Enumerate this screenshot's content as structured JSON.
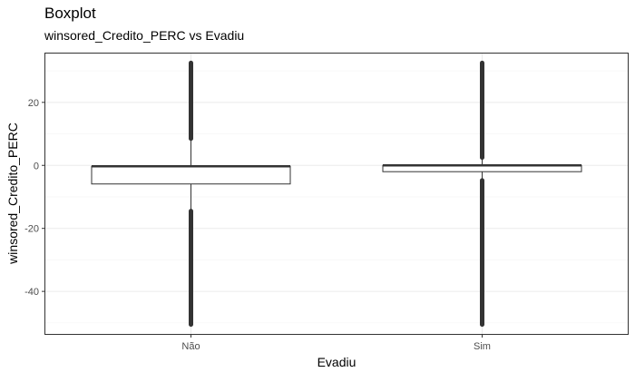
{
  "chart_data": {
    "type": "boxplot",
    "title": "Boxplot",
    "subtitle": "winsored_Credito_PERC vs Evadiu",
    "xlabel": "Evadiu",
    "ylabel": "winsored_Credito_PERC",
    "categories": [
      "Não",
      "Sim"
    ],
    "ylim": [
      -53.5,
      35.5
    ],
    "yticks": [
      20,
      0,
      -20,
      -40
    ],
    "grid": true,
    "boxes": [
      {
        "category": "Não",
        "whisker_low": -14.5,
        "q1": -5.9,
        "median": -0.3,
        "q3": -0.3,
        "whisker_high": 8.5,
        "outliers_high": [
          8.5,
          32.5
        ],
        "outliers_low": [
          -50.5,
          -14.5
        ]
      },
      {
        "category": "Sim",
        "whisker_low": -4.8,
        "q1": -2.0,
        "median": 0.0,
        "q3": 0.0,
        "whisker_high": 2.5,
        "outliers_high": [
          2.5,
          32.5
        ],
        "outliers_low": [
          -50.5,
          -4.8
        ]
      }
    ],
    "colors": {
      "box_fill": "#ffffff",
      "box_line": "#333333",
      "grid_major": "#ebebeb",
      "grid_minor": "#f5f5f5",
      "panel_border": "#333333"
    }
  }
}
